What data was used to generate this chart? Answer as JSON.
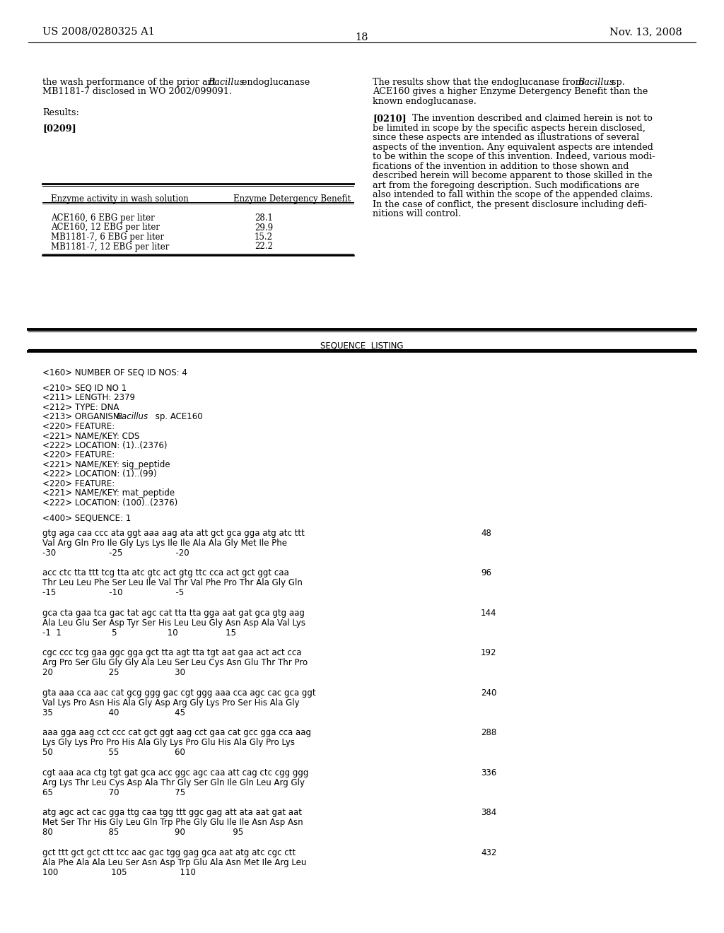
{
  "page_number": "18",
  "patent_number": "US 2008/0280325 A1",
  "patent_date": "Nov. 13, 2008",
  "table_header": [
    "Enzyme activity in wash solution",
    "Enzyme Detergency Benefit"
  ],
  "table_rows": [
    [
      "ACE160, 6 EBG per liter",
      "28.1"
    ],
    [
      "ACE160, 12 EBG per liter",
      "29.9"
    ],
    [
      "MB1181-7, 6 EBG per liter",
      "15.2"
    ],
    [
      "MB1181-7, 12 EBG per liter",
      "22.2"
    ]
  ],
  "sequence_listing_header": "SEQUENCE  LISTING",
  "sequence_metadata": [
    "<160> NUMBER OF SEQ ID NOS: 4",
    "",
    "<210> SEQ ID NO 1",
    "<211> LENGTH: 2379",
    "<212> TYPE: DNA",
    "<213> ORGANISM: Bacillus sp. ACE160",
    "<220> FEATURE:",
    "<221> NAME/KEY: CDS",
    "<222> LOCATION: (1)..(2376)",
    "<220> FEATURE:",
    "<221> NAME/KEY: sig_peptide",
    "<222> LOCATION: (1)..(99)",
    "<220> FEATURE:",
    "<221> NAME/KEY: mat_peptide",
    "<222> LOCATION: (100)..(2376)",
    "",
    "<400> SEQUENCE: 1"
  ],
  "sequence_blocks": [
    {
      "dna": "gtg aga caa ccc ata ggt aaa aag ata att gct gca gga atg atc ttt",
      "aa": "Val Arg Gln Pro Ile Gly Lys Lys Ile Ile Ala Ala Gly Met Ile Phe",
      "nums": "-30                    -25                    -20",
      "num_end": "48"
    },
    {
      "dna": "acc ctc tta ttt tcg tta atc gtc act gtg ttc cca act gct ggt caa",
      "aa": "Thr Leu Leu Phe Ser Leu Ile Val Thr Val Phe Pro Thr Ala Gly Gln",
      "nums": "-15                    -10                    -5",
      "num_end": "96"
    },
    {
      "dna": "gca cta gaa tca gac tat agc cat tta tta gga aat gat gca gtg aag",
      "aa": "Ala Leu Glu Ser Asp Tyr Ser His Leu Leu Gly Asn Asp Ala Val Lys",
      "nums": "-1  1                   5                   10                  15",
      "num_end": "144"
    },
    {
      "dna": "cgc ccc tcg gaa ggc gga gct tta agt tta tgt aat gaa act act cca",
      "aa": "Arg Pro Ser Glu Gly Gly Ala Leu Ser Leu Cys Asn Glu Thr Thr Pro",
      "nums": "20                     25                     30",
      "num_end": "192"
    },
    {
      "dna": "gta aaa cca aac cat gcg ggg gac cgt ggg aaa cca agc cac gca ggt",
      "aa": "Val Lys Pro Asn His Ala Gly Asp Arg Gly Lys Pro Ser His Ala Gly",
      "nums": "35                     40                     45",
      "num_end": "240"
    },
    {
      "dna": "aaa gga aag cct ccc cat gct ggt aag cct gaa cat gcc gga cca aag",
      "aa": "Lys Gly Lys Pro Pro His Ala Gly Lys Pro Glu His Ala Gly Pro Lys",
      "nums": "50                     55                     60",
      "num_end": "288"
    },
    {
      "dna": "cgt aaa aca ctg tgt gat gca acc ggc agc caa att cag ctc cgg ggg",
      "aa": "Arg Lys Thr Leu Cys Asp Ala Thr Gly Ser Gln Ile Gln Leu Arg Gly",
      "nums": "65                     70                     75",
      "num_end": "336"
    },
    {
      "dna": "atg agc act cac gga ttg caa tgg ttt ggc gag att ata aat gat aat",
      "aa": "Met Ser Thr His Gly Leu Gln Trp Phe Gly Glu Ile Ile Asn Asp Asn",
      "nums": "80                     85                     90                  95",
      "num_end": "384"
    },
    {
      "dna": "gct ttt gct gct ctt tcc aac gac tgg gag gca aat atg atc cgc ctt",
      "aa": "Ala Phe Ala Ala Leu Ser Asn Asp Trp Glu Ala Asn Met Ile Arg Leu",
      "nums": "100                    105                    110",
      "num_end": "432"
    }
  ],
  "left_col_line1a": "the wash performance of the prior art ",
  "left_col_line1b": "Bacillus",
  "left_col_line1c": " endoglucanase",
  "left_col_line2": "MB1181-7 disclosed in WO 2002/099091.",
  "left_col_results": "Results:",
  "left_col_0209": "[0209]",
  "right_col_line1a": "The results show that the endoglucanase from ",
  "right_col_line1b": "Bacillus",
  "right_col_line1c": " sp.",
  "right_col_line2": "ACE160 gives a higher Enzyme Detergency Benefit than the",
  "right_col_line3": "known endoglucanase.",
  "right_col_0210": "[0210]",
  "right_col_0210_text": "    The invention described and claimed herein is not to",
  "right_col_para": [
    "be limited in scope by the specific aspects herein disclosed,",
    "since these aspects are intended as illustrations of several",
    "aspects of the invention. Any equivalent aspects are intended",
    "to be within the scope of this invention. Indeed, various modi-",
    "fications of the invention in addition to those shown and",
    "described herein will become apparent to those skilled in the",
    "art from the foregoing description. Such modifications are",
    "also intended to fall within the scope of the appended claims.",
    "In the case of conflict, the present disclosure including defi-",
    "nitions will control."
  ]
}
